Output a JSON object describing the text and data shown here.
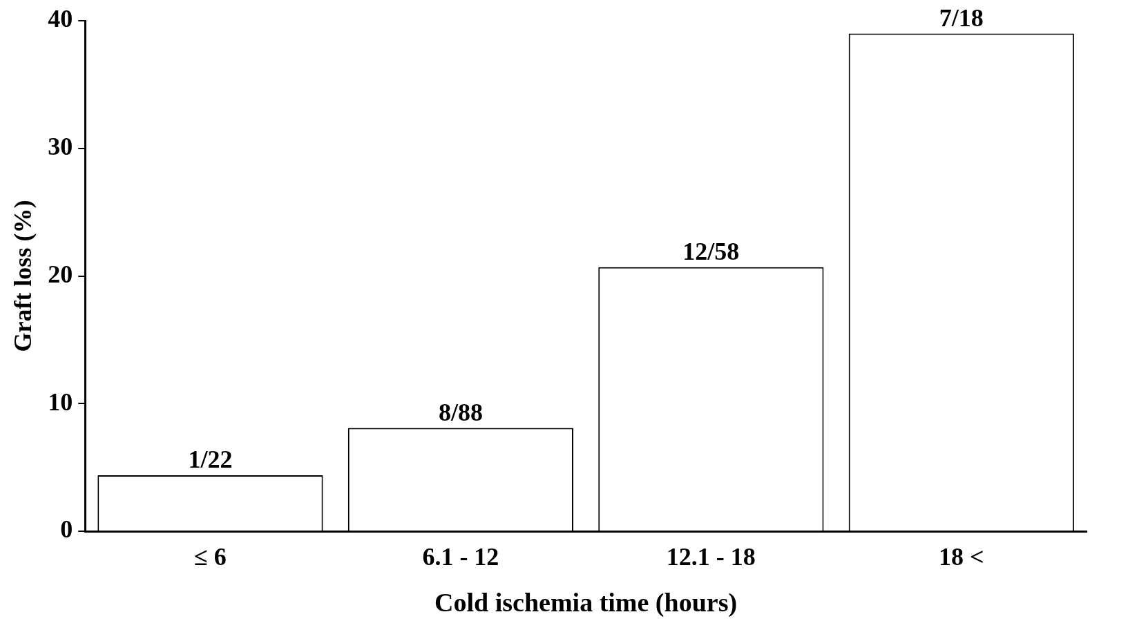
{
  "chart_data": {
    "type": "bar",
    "xlabel": "Cold ischemia time (hours)",
    "ylabel": "Graft loss (%)",
    "categories": [
      "≤ 6",
      "6.1 - 12",
      "12.1 - 18",
      "18 <"
    ],
    "values": [
      4.4,
      8.1,
      20.7,
      39
    ],
    "value_labels": [
      "1/22",
      "8/88",
      "12/58",
      "7/18"
    ],
    "color": "#ffffff",
    "ylim": [
      0,
      40
    ],
    "yticks": [
      0,
      10,
      20,
      30,
      40
    ],
    "grid": false,
    "legend": false
  }
}
